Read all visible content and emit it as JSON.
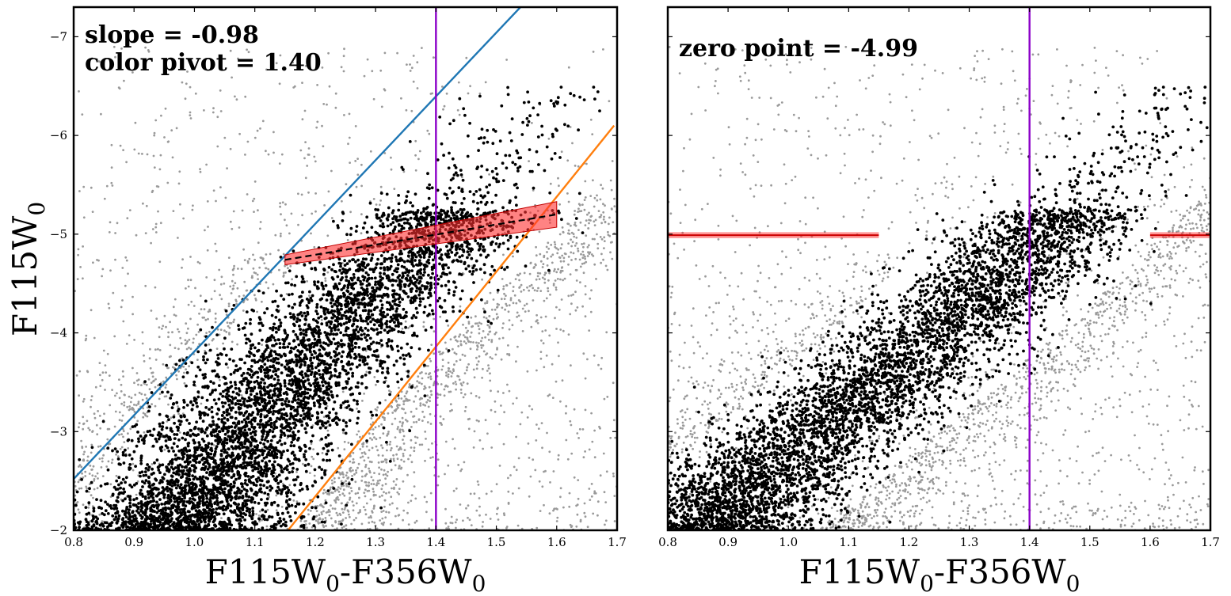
{
  "colors": {
    "blue_line": "#1f77b4",
    "orange_line": "#ff7f0e",
    "pivot_line": "#8b00c8",
    "fit_band": "#ff3030",
    "annotation": "#0000ff",
    "selected_points": "#000000",
    "other_points": "#9a9a9a"
  },
  "y_axis": {
    "label_main": "F115W",
    "label_sub": "0"
  },
  "x_axis": {
    "label_a": "F115W",
    "label_a_sub": "0",
    "label_b": "-F356W",
    "label_b_sub": "0"
  },
  "chart_data": [
    {
      "type": "scatter",
      "panel": "left",
      "xlim": [
        0.8,
        1.7
      ],
      "ylim": [
        -2,
        -7.3
      ],
      "y_inverted": true,
      "xticks": [
        0.8,
        0.9,
        1.0,
        1.1,
        1.2,
        1.3,
        1.4,
        1.5,
        1.6,
        1.7
      ],
      "xtick_labels": [
        "0.8",
        "0.9",
        "1.0",
        "1.1",
        "1.2",
        "1.3",
        "1.4",
        "1.5",
        "1.6",
        "1.7"
      ],
      "yticks": [
        -7,
        -6,
        -5,
        -4,
        -3,
        -2
      ],
      "ytick_labels": [
        "−7",
        "−6",
        "−5",
        "−4",
        "−3",
        "−2"
      ],
      "annotations": [
        "slope = -0.98",
        "color pivot = 1.40"
      ],
      "series": [
        {
          "name": "upper boundary",
          "kind": "line",
          "x": [
            0.8,
            1.54
          ],
          "y": [
            -2.52,
            -7.3
          ]
        },
        {
          "name": "lower boundary",
          "kind": "line",
          "x": [
            1.155,
            1.695
          ],
          "y": [
            -2.0,
            -6.1
          ]
        },
        {
          "name": "color pivot",
          "kind": "vline",
          "x": 1.4
        },
        {
          "name": "TRGB fit",
          "kind": "line",
          "x": [
            1.15,
            1.6
          ],
          "y": [
            -4.74,
            -5.2
          ]
        },
        {
          "name": "TRGB fit uncertainty",
          "kind": "band",
          "x": [
            1.15,
            1.6
          ],
          "y_low": [
            -4.69,
            -5.07
          ],
          "y_high": [
            -4.79,
            -5.33
          ]
        }
      ],
      "scatter_model": {
        "selected_region": "between upper boundary and lower boundary",
        "color_center_at_mag": [
          [
            -2.0,
            0.97
          ],
          [
            -3.0,
            1.08
          ],
          [
            -4.0,
            1.23
          ],
          [
            -5.0,
            1.4
          ],
          [
            -6.0,
            1.52
          ]
        ],
        "dense_range": [
          -2.0,
          -5.2
        ],
        "sparse_above_tip": [
          -5.2,
          -6.4
        ]
      }
    },
    {
      "type": "scatter",
      "panel": "right",
      "xlim": [
        0.8,
        1.7
      ],
      "ylim": [
        -2,
        -7.3
      ],
      "y_inverted": true,
      "xticks": [
        0.8,
        0.9,
        1.0,
        1.1,
        1.2,
        1.3,
        1.4,
        1.5,
        1.6,
        1.7
      ],
      "xtick_labels": [
        "0.8",
        "0.9",
        "1.0",
        "1.1",
        "1.2",
        "1.3",
        "1.4",
        "1.5",
        "1.6",
        "1.7"
      ],
      "yticks": [
        -7,
        -6,
        -5,
        -4,
        -3,
        -2
      ],
      "annotations": [
        "zero point = -4.99"
      ],
      "series": [
        {
          "name": "color pivot",
          "kind": "vline",
          "x": 1.4
        },
        {
          "name": "zero point left segment",
          "kind": "hline",
          "y": -4.99,
          "x": [
            0.8,
            1.15
          ],
          "band": [
            -4.96,
            -5.02
          ]
        },
        {
          "name": "zero point right segment",
          "kind": "hline",
          "y": -4.99,
          "x": [
            1.6,
            1.7
          ],
          "band": [
            -4.96,
            -5.02
          ]
        }
      ],
      "scatter_model": {
        "description": "same stars after slope correction; selected stars form a tilted cloud",
        "color_center_at_mag": [
          [
            -2.0,
            0.85
          ],
          [
            -3.0,
            1.05
          ],
          [
            -4.0,
            1.25
          ],
          [
            -5.0,
            1.42
          ]
        ],
        "dense_range": [
          -2.0,
          -5.2
        ]
      }
    }
  ]
}
